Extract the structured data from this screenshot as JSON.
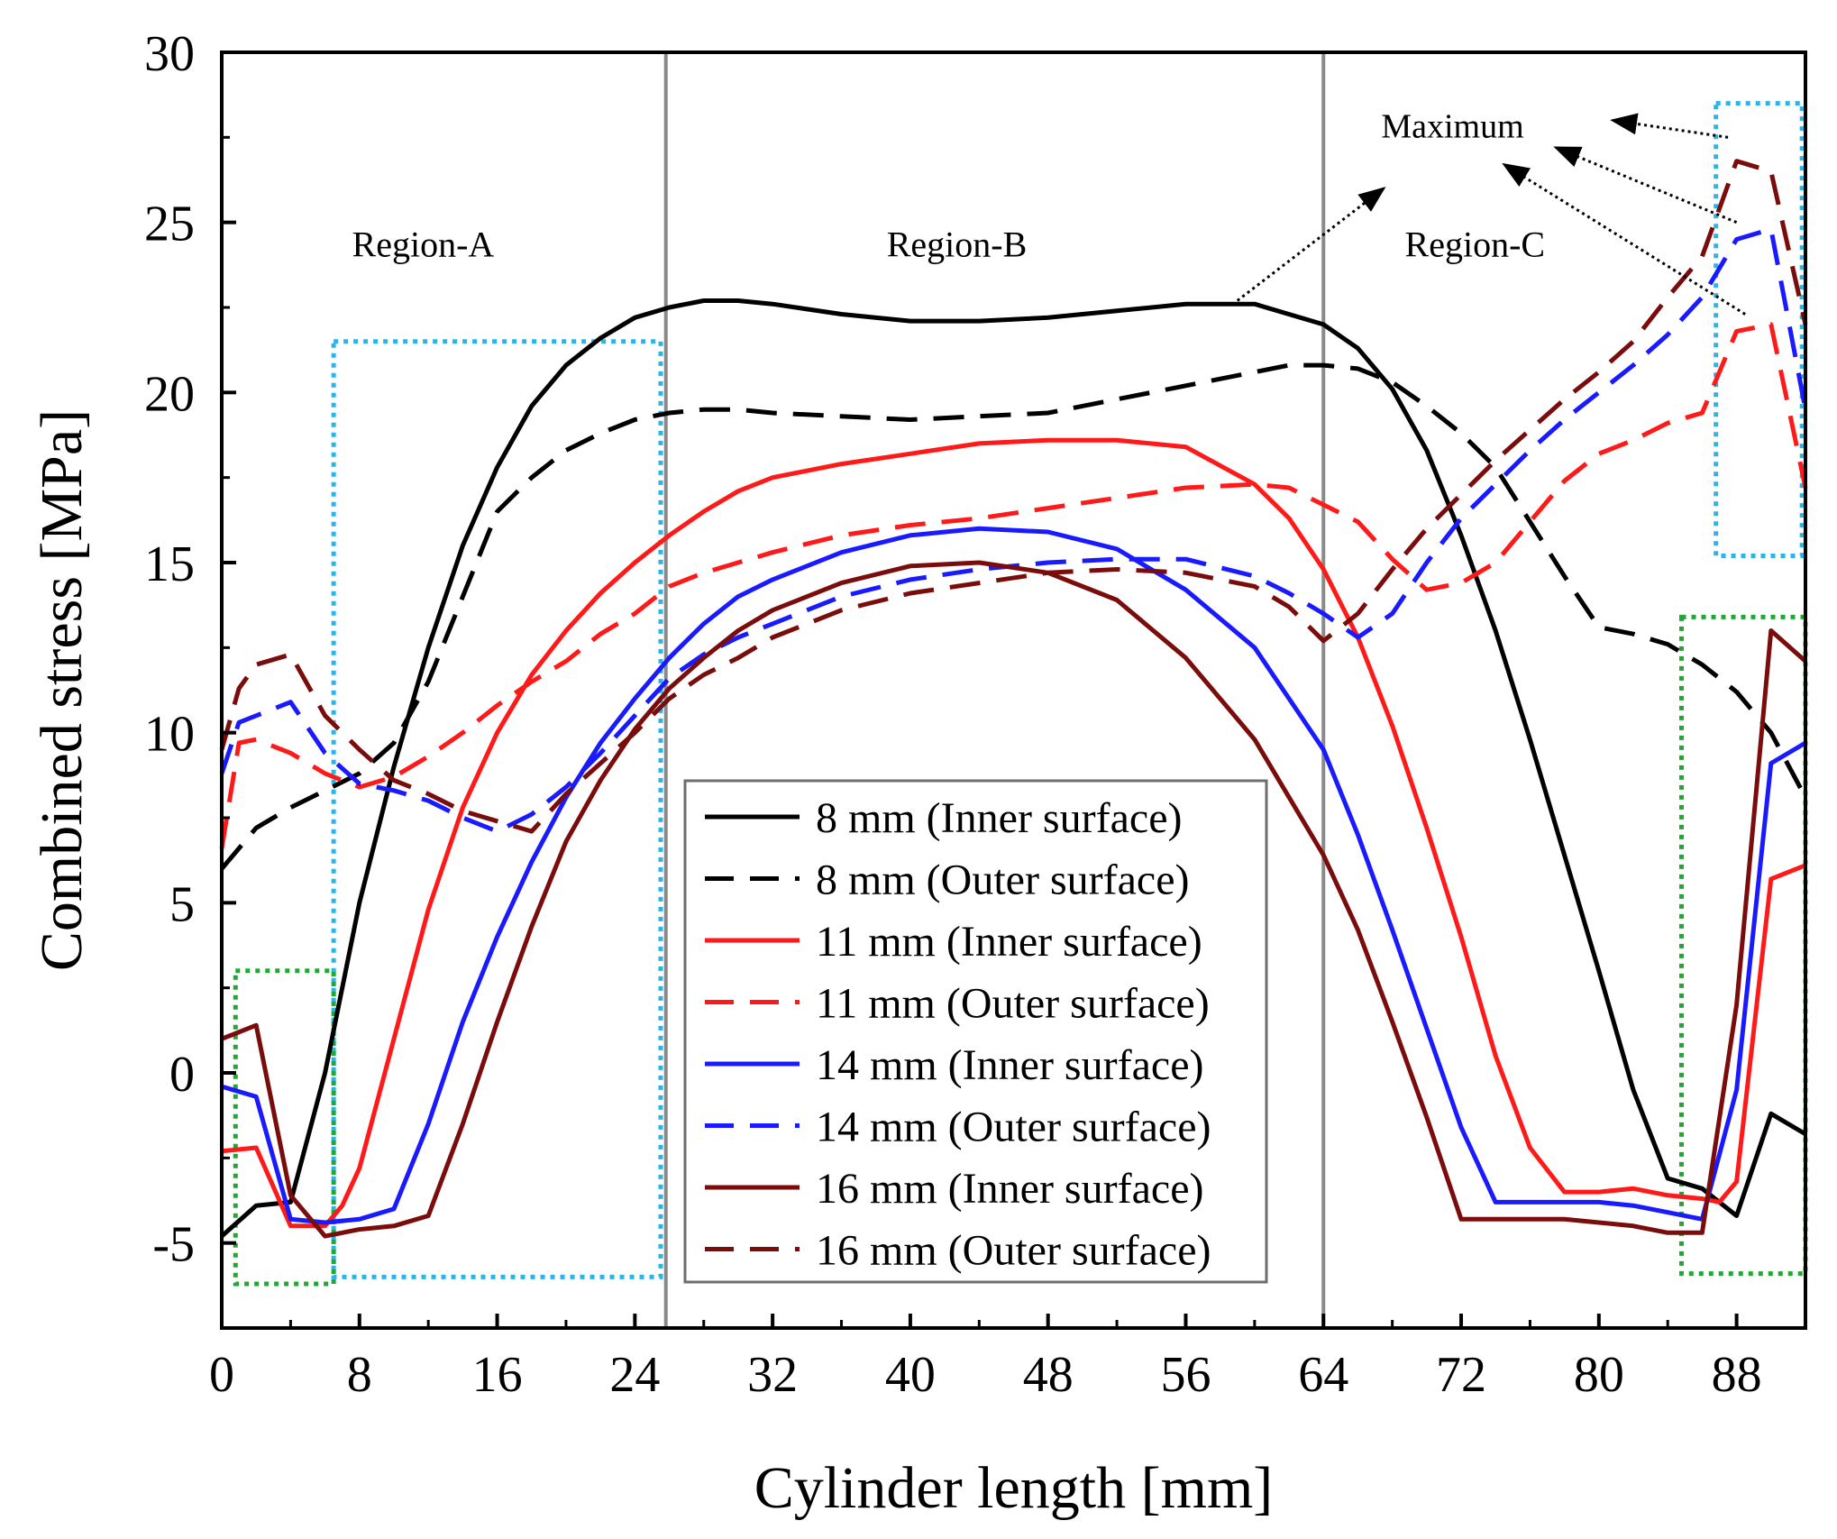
{
  "chart_data": {
    "type": "line",
    "xlabel": "Cylinder length [mm]",
    "ylabel": "Combined stress [MPa]",
    "xlim": [
      0,
      92
    ],
    "ylim": [
      -7.5,
      30
    ],
    "xticks": [
      0,
      8,
      16,
      24,
      32,
      40,
      48,
      56,
      64,
      72,
      80,
      88
    ],
    "yticks": [
      -5,
      0,
      5,
      10,
      15,
      20,
      25,
      30
    ],
    "xtick_labels": [
      "0",
      "8",
      "16",
      "24",
      "32",
      "40",
      "48",
      "56",
      "64",
      "72",
      "80",
      "88"
    ],
    "ytick_labels": [
      "-5",
      "0",
      "5",
      "10",
      "15",
      "20",
      "25",
      "30"
    ],
    "region_dividers": [
      25.8,
      64
    ],
    "regions": [
      {
        "label": "Region-A",
        "x": 11.7,
        "y": 24
      },
      {
        "label": "Region-B",
        "x": 42.7,
        "y": 24
      },
      {
        "label": "Region-C",
        "x": 72.8,
        "y": 24
      }
    ],
    "maximum_label": "Maximum",
    "maximum_annotation": {
      "label_x": 71.5,
      "label_y": 27.5,
      "arrows": [
        {
          "from": [
            59,
            22.7
          ],
          "to": [
            67.5,
            26
          ]
        },
        {
          "from": [
            87.5,
            27.5
          ],
          "to": [
            80.8,
            28
          ]
        },
        {
          "from": [
            88,
            25
          ],
          "to": [
            77.5,
            27.2
          ]
        },
        {
          "from": [
            88.5,
            22.3
          ],
          "to": [
            74.5,
            26.7
          ]
        }
      ]
    },
    "highlight_boxes": [
      {
        "color": "#2ab4ea",
        "x0": 6.5,
        "x1": 25.5,
        "y0": -6,
        "y1": 21.5
      },
      {
        "color": "#2ab4ea",
        "x0": 86.8,
        "x1": 91.8,
        "y0": 15.2,
        "y1": 28.5
      },
      {
        "color": "#20a833",
        "x0": 0.8,
        "x1": 6.5,
        "y0": -6.2,
        "y1": 3
      },
      {
        "color": "#20a833",
        "x0": 84.8,
        "x1": 92,
        "y0": -5.9,
        "y1": 13.4
      }
    ],
    "series": [
      {
        "name": "8 mm (Inner surface)",
        "color": "#000000",
        "dash": "solid",
        "x": [
          0,
          2,
          4,
          6,
          8,
          10,
          12,
          14,
          16,
          18,
          20,
          22,
          24,
          26,
          28,
          30,
          32,
          36,
          40,
          44,
          48,
          52,
          56,
          60,
          64,
          66,
          68,
          70,
          72,
          74,
          76,
          78,
          80,
          82,
          84,
          86,
          88,
          90,
          92
        ],
        "y": [
          -4.8,
          -3.9,
          -3.8,
          0,
          5,
          9,
          12.5,
          15.5,
          17.8,
          19.6,
          20.8,
          21.6,
          22.2,
          22.5,
          22.7,
          22.7,
          22.6,
          22.3,
          22.1,
          22.1,
          22.2,
          22.4,
          22.6,
          22.6,
          22,
          21.3,
          20.1,
          18.3,
          15.8,
          13,
          9.8,
          6.4,
          3,
          -0.5,
          -3.1,
          -3.4,
          -4.2,
          -1.2,
          -1.8
        ]
      },
      {
        "name": "8 mm (Outer surface)",
        "color": "#000000",
        "dash": "dashed",
        "x": [
          0,
          2,
          4,
          6,
          8,
          10,
          12,
          14,
          16,
          18,
          20,
          22,
          24,
          26,
          28,
          30,
          32,
          36,
          40,
          44,
          48,
          52,
          56,
          60,
          62,
          64,
          66,
          68,
          70,
          72,
          74,
          76,
          78,
          80,
          82,
          84,
          86,
          88,
          90,
          92
        ],
        "y": [
          6,
          7.2,
          7.8,
          8.3,
          8.8,
          9.7,
          11.5,
          14,
          16.5,
          17.5,
          18.3,
          18.8,
          19.2,
          19.4,
          19.5,
          19.5,
          19.4,
          19.3,
          19.2,
          19.3,
          19.4,
          19.8,
          20.2,
          20.6,
          20.8,
          20.8,
          20.7,
          20.3,
          19.6,
          18.8,
          17.8,
          16.2,
          14.6,
          13.1,
          12.9,
          12.6,
          12,
          11.2,
          10,
          8.1
        ]
      },
      {
        "name": "11 mm (Inner surface)",
        "color": "#ff1a1a",
        "dash": "solid",
        "x": [
          0,
          2,
          4,
          6,
          7,
          8,
          10,
          12,
          14,
          16,
          18,
          20,
          22,
          24,
          26,
          28,
          30,
          32,
          36,
          40,
          44,
          48,
          52,
          56,
          60,
          62,
          64,
          66,
          68,
          70,
          72,
          74,
          76,
          78,
          80,
          82,
          84,
          86,
          87,
          88,
          90,
          92
        ],
        "y": [
          -2.3,
          -2.2,
          -4.5,
          -4.5,
          -3.9,
          -2.8,
          1,
          4.8,
          7.8,
          10,
          11.7,
          13,
          14.1,
          15,
          15.8,
          16.5,
          17.1,
          17.5,
          17.9,
          18.2,
          18.5,
          18.6,
          18.6,
          18.4,
          17.3,
          16.3,
          14.8,
          12.8,
          10.2,
          7.2,
          4,
          0.5,
          -2.2,
          -3.5,
          -3.5,
          -3.4,
          -3.6,
          -3.7,
          -3.8,
          -3.2,
          5.7,
          6.1
        ]
      },
      {
        "name": "11 mm (Outer surface)",
        "color": "#ff1a1a",
        "dash": "dashed",
        "x": [
          0,
          1,
          2,
          4,
          6,
          8,
          10,
          12,
          14,
          16,
          18,
          20,
          22,
          24,
          26,
          28,
          30,
          32,
          36,
          40,
          44,
          48,
          52,
          56,
          60,
          62,
          64,
          66,
          68,
          70,
          72,
          74,
          76,
          78,
          80,
          82,
          84,
          86,
          88,
          90,
          92
        ],
        "y": [
          6.6,
          9.7,
          9.8,
          9.4,
          8.8,
          8.4,
          8.7,
          9.3,
          10,
          10.8,
          11.5,
          12.1,
          12.9,
          13.5,
          14.3,
          14.7,
          15,
          15.3,
          15.8,
          16.1,
          16.3,
          16.6,
          16.9,
          17.2,
          17.3,
          17.2,
          16.7,
          16.2,
          15.1,
          14.2,
          14.4,
          15,
          16.2,
          17.4,
          18.2,
          18.6,
          19.1,
          19.4,
          21.8,
          22,
          17.2
        ]
      },
      {
        "name": "14 mm (Inner surface)",
        "color": "#1a1aff",
        "dash": "solid",
        "x": [
          0,
          2,
          4,
          6,
          8,
          10,
          12,
          14,
          16,
          18,
          20,
          22,
          24,
          26,
          28,
          30,
          32,
          36,
          40,
          44,
          48,
          52,
          56,
          60,
          64,
          66,
          68,
          70,
          72,
          74,
          76,
          78,
          80,
          82,
          84,
          86,
          88,
          90,
          92
        ],
        "y": [
          -0.4,
          -0.7,
          -4.3,
          -4.4,
          -4.3,
          -4,
          -1.5,
          1.5,
          4,
          6.2,
          8.1,
          9.7,
          11,
          12.2,
          13.2,
          14,
          14.5,
          15.3,
          15.8,
          16,
          15.9,
          15.4,
          14.2,
          12.5,
          9.5,
          7,
          4.2,
          1.3,
          -1.6,
          -3.8,
          -3.8,
          -3.8,
          -3.8,
          -3.9,
          -4.1,
          -4.3,
          -0.5,
          9.1,
          9.7
        ]
      },
      {
        "name": "14 mm (Outer surface)",
        "color": "#1a1aff",
        "dash": "dashed",
        "x": [
          0,
          1,
          2,
          4,
          6,
          8,
          10,
          12,
          14,
          16,
          18,
          20,
          22,
          24,
          26,
          28,
          30,
          32,
          36,
          40,
          44,
          48,
          52,
          56,
          60,
          62,
          64,
          66,
          68,
          70,
          72,
          74,
          76,
          78,
          80,
          82,
          84,
          86,
          88,
          90,
          92
        ],
        "y": [
          8.8,
          10.3,
          10.5,
          10.9,
          9.4,
          8.5,
          8.3,
          8,
          7.5,
          7.1,
          7.6,
          8.4,
          9.4,
          10.5,
          11.6,
          12.3,
          12.8,
          13.2,
          14,
          14.5,
          14.8,
          15,
          15.1,
          15.1,
          14.6,
          14.1,
          13.5,
          12.8,
          13.5,
          15,
          16.3,
          17.3,
          18.3,
          19.2,
          20,
          20.8,
          21.7,
          22.8,
          24.5,
          24.8,
          19.5
        ]
      },
      {
        "name": "16 mm (Inner surface)",
        "color": "#7a0c0c",
        "dash": "solid",
        "x": [
          0,
          2,
          4,
          6,
          8,
          10,
          12,
          14,
          16,
          18,
          20,
          22,
          24,
          26,
          28,
          30,
          32,
          36,
          40,
          44,
          48,
          52,
          56,
          60,
          64,
          66,
          68,
          70,
          72,
          74,
          76,
          78,
          80,
          82,
          84,
          86,
          88,
          90,
          92
        ],
        "y": [
          1,
          1.4,
          -3.6,
          -4.8,
          -4.6,
          -4.5,
          -4.2,
          -1.5,
          1.5,
          4.3,
          6.8,
          8.6,
          10.1,
          11.3,
          12.2,
          13,
          13.6,
          14.4,
          14.9,
          15,
          14.7,
          13.9,
          12.2,
          9.8,
          6.4,
          4.2,
          1.5,
          -1.3,
          -4.3,
          -4.3,
          -4.3,
          -4.3,
          -4.4,
          -4.5,
          -4.7,
          -4.7,
          2,
          13,
          12.1
        ]
      },
      {
        "name": "16 mm (Outer surface)",
        "color": "#7a0c0c",
        "dash": "dashed",
        "x": [
          0,
          1,
          2,
          4,
          6,
          8,
          10,
          12,
          14,
          16,
          18,
          20,
          22,
          24,
          26,
          28,
          30,
          32,
          36,
          40,
          44,
          48,
          52,
          56,
          60,
          62,
          64,
          66,
          68,
          70,
          72,
          74,
          76,
          78,
          80,
          82,
          84,
          86,
          88,
          90,
          92
        ],
        "y": [
          9.5,
          11.3,
          12,
          12.3,
          10.5,
          9.5,
          8.6,
          8.2,
          7.7,
          7.4,
          7.1,
          8.2,
          9.1,
          10,
          11,
          11.7,
          12.2,
          12.8,
          13.6,
          14.1,
          14.4,
          14.7,
          14.8,
          14.7,
          14.3,
          13.7,
          12.7,
          13.5,
          14.8,
          16,
          17,
          18,
          18.9,
          19.8,
          20.6,
          21.5,
          22.8,
          24,
          26.8,
          26.5,
          22
        ]
      }
    ]
  }
}
